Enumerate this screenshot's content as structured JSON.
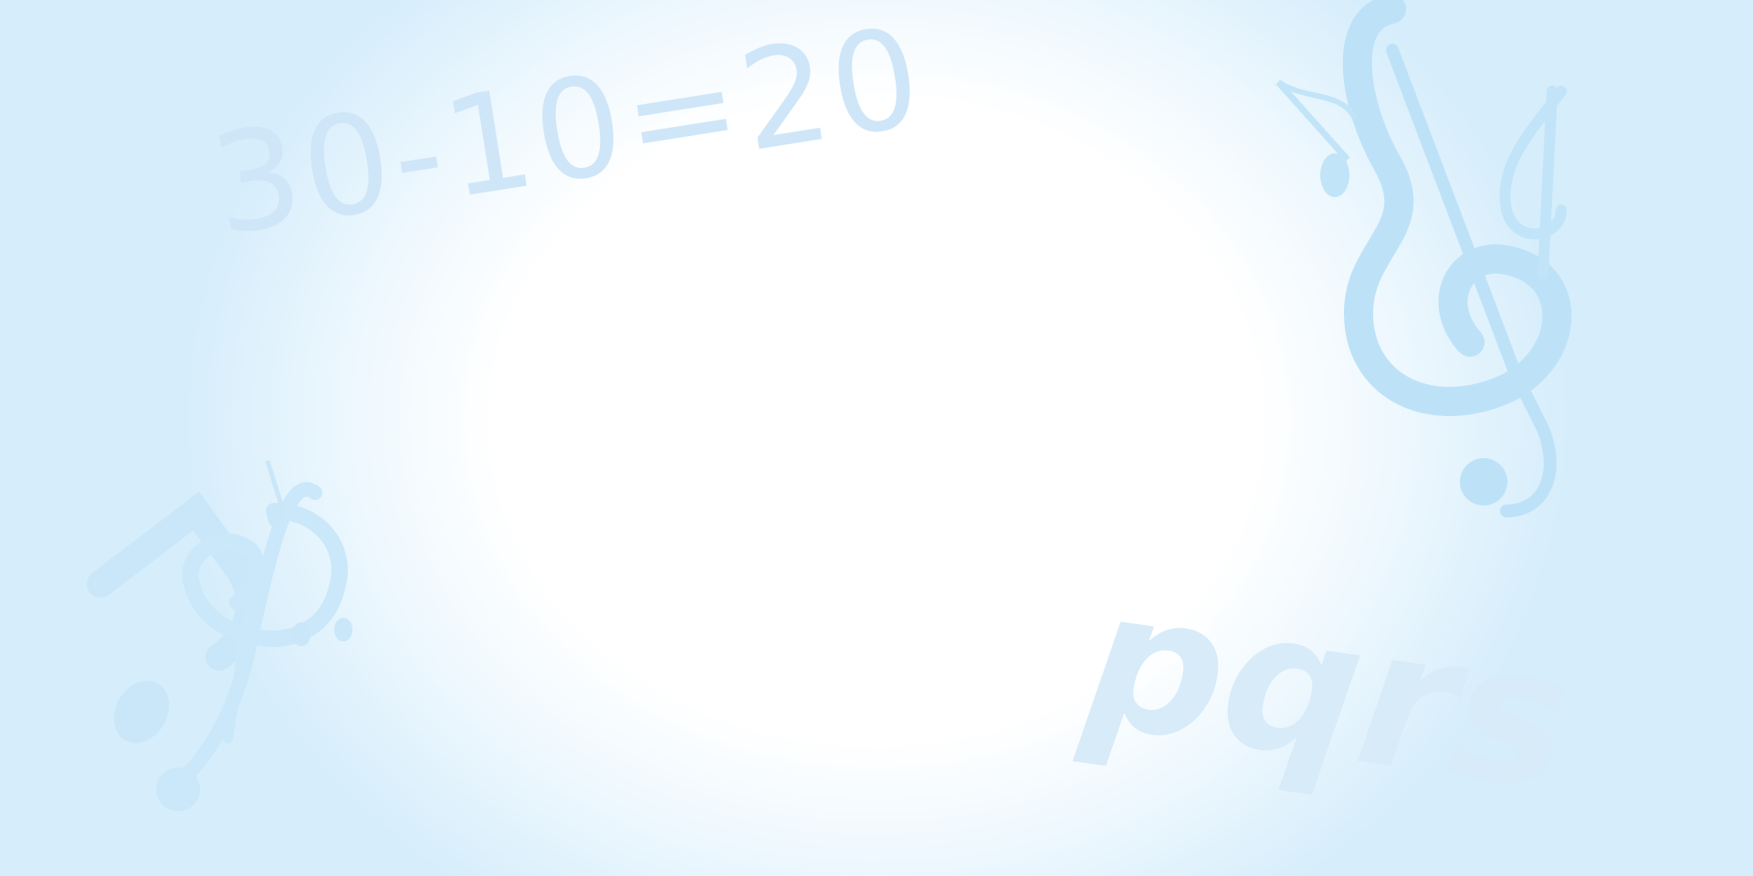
{
  "equation_text": "30-10=20",
  "letters_text": "pqrs",
  "icons": [
    "treble-clef-icon",
    "music-note-icon"
  ],
  "colors": {
    "background_center": "#ffffff",
    "background_edge": "#d6edfb",
    "text": "#cfe6f8",
    "clef": "#bde2f8"
  }
}
